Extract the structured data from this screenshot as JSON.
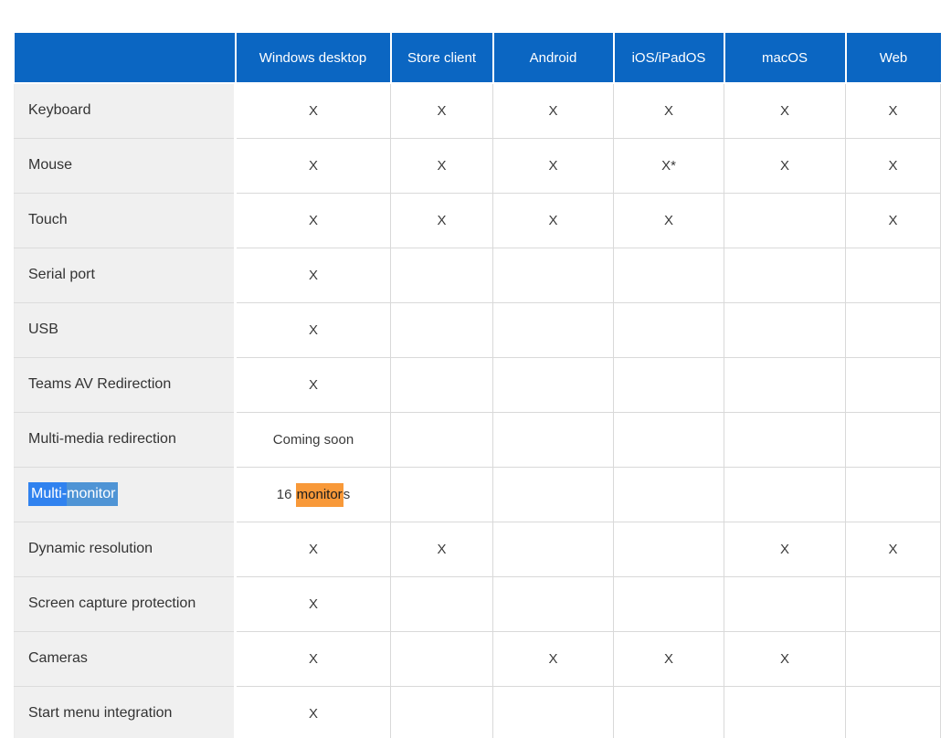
{
  "table": {
    "corner_header": "",
    "columns": [
      "Windows desktop",
      "Store client",
      "Android",
      "iOS/iPadOS",
      "macOS",
      "Web"
    ],
    "rows": [
      {
        "feature": "Keyboard",
        "cells": [
          "X",
          "X",
          "X",
          "X",
          "X",
          "X"
        ]
      },
      {
        "feature": "Mouse",
        "cells": [
          "X",
          "X",
          "X",
          "X*",
          "X",
          "X"
        ]
      },
      {
        "feature": "Touch",
        "cells": [
          "X",
          "X",
          "X",
          "X",
          "",
          "X"
        ]
      },
      {
        "feature": "Serial port",
        "cells": [
          "X",
          "",
          "",
          "",
          "",
          ""
        ]
      },
      {
        "feature": "USB",
        "cells": [
          "X",
          "",
          "",
          "",
          "",
          ""
        ]
      },
      {
        "feature": "Teams AV Redirection",
        "cells": [
          "X",
          "",
          "",
          "",
          "",
          ""
        ]
      },
      {
        "feature": "Multi-media redirection",
        "cells": [
          "Coming soon",
          "",
          "",
          "",
          "",
          ""
        ]
      },
      {
        "feature": "Multi-monitor",
        "feature_segments": [
          {
            "text": "Multi-",
            "style": "selection"
          },
          {
            "text": "monitor",
            "style": "selection-find"
          }
        ],
        "cells": [
          {
            "segments": [
              {
                "text": "16 ",
                "style": "plain"
              },
              {
                "text": "monitor",
                "style": "find-active"
              },
              {
                "text": "s",
                "style": "plain"
              }
            ]
          },
          "",
          "",
          "",
          "",
          ""
        ]
      },
      {
        "feature": "Dynamic resolution",
        "cells": [
          "X",
          "X",
          "",
          "",
          "X",
          "X"
        ]
      },
      {
        "feature": "Screen capture protection",
        "cells": [
          "X",
          "",
          "",
          "",
          "",
          ""
        ]
      },
      {
        "feature": "Cameras",
        "cells": [
          "X",
          "",
          "X",
          "X",
          "X",
          ""
        ]
      },
      {
        "feature": "Start menu integration",
        "cells": [
          "X",
          "",
          "",
          "",
          "",
          ""
        ]
      }
    ],
    "colors": {
      "header_background": "#0b66c2",
      "header_text": "#ffffff",
      "row_label_background": "#f0f0f0",
      "body_text": "#333333",
      "grid_border": "#d9d9d9",
      "text_selection_highlight": "#3082ef",
      "find_match_inside_selection": "#4f94d5",
      "find_active_match_highlight": "#f89939"
    }
  }
}
